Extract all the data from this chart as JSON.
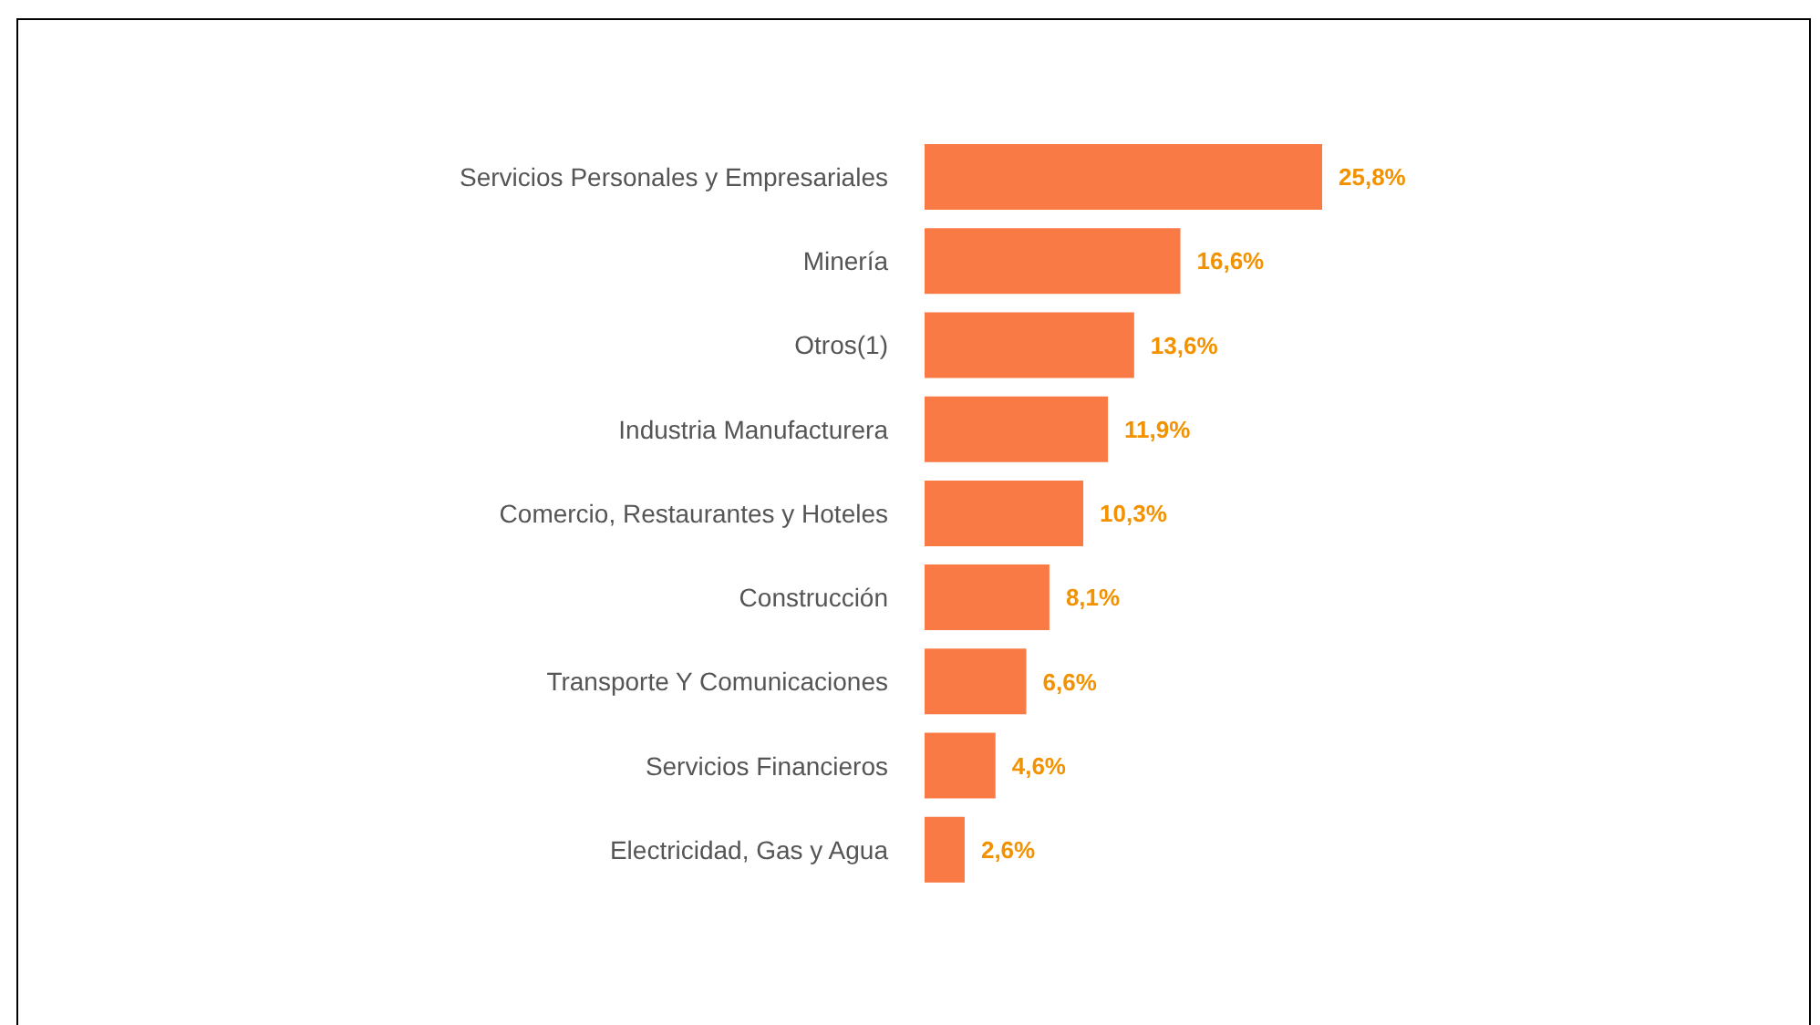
{
  "chart_data": {
    "type": "bar",
    "orientation": "horizontal",
    "categories": [
      "Servicios Personales y Empresariales",
      "Minería",
      "Otros(1)",
      "Industria Manufacturera",
      "Comercio, Restaurantes y Hoteles",
      "Construcción",
      "Transporte Y Comunicaciones",
      "Servicios Financieros",
      "Electricidad, Gas y Agua"
    ],
    "values": [
      25.8,
      16.6,
      13.6,
      11.9,
      10.3,
      8.1,
      6.6,
      4.6,
      2.6
    ],
    "value_labels": [
      "25,8%",
      "16,6%",
      "13,6%",
      "11,9%",
      "10,3%",
      "8,1%",
      "6,6%",
      "4,6%",
      "2,6%"
    ],
    "color": "#f97a45",
    "grid": false,
    "legend": false
  }
}
